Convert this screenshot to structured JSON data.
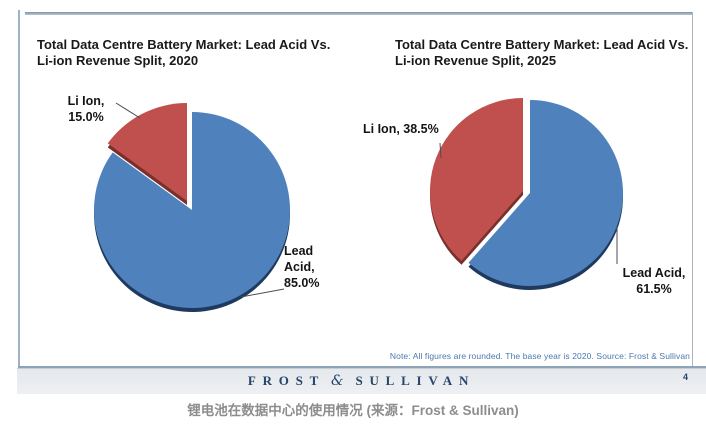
{
  "chart_data": [
    {
      "type": "pie",
      "title": "Total Data Centre Battery Market: Lead Acid Vs.\nLi-ion Revenue Split, 2020",
      "labels": [
        "Lead Acid",
        "Li Ion"
      ],
      "values": [
        85.0,
        15.0
      ],
      "unit": "%",
      "colors": [
        "#4f81bd",
        "#c0504d"
      ],
      "shadow_colors": [
        "#1f3a5f",
        "#7b2f2d"
      ],
      "callouts": [
        "Lead\nAcid,\n85.0%",
        "Li Ion,\n15.0%"
      ],
      "legend": "none",
      "start_angle_deg": 0,
      "direction": "clockwise",
      "exploded_slice": "Li Ion"
    },
    {
      "type": "pie",
      "title": "Total Data Centre Battery Market: Lead Acid Vs.\nLi-ion Revenue Split, 2025",
      "labels": [
        "Lead Acid",
        "Li Ion"
      ],
      "values": [
        61.5,
        38.5
      ],
      "unit": "%",
      "colors": [
        "#4f81bd",
        "#c0504d"
      ],
      "shadow_colors": [
        "#1f3a5f",
        "#7b2f2d"
      ],
      "callouts": [
        "Lead Acid,\n61.5%",
        "Li Ion, 38.5%"
      ],
      "legend": "none",
      "start_angle_deg": 0,
      "direction": "clockwise",
      "exploded_slice": "Li Ion"
    }
  ],
  "note": "Note: All figures are rounded. The base year is 2020. Source: Frost & Sullivan",
  "footer": {
    "brand_left": "FROST",
    "ampersand": "&",
    "brand_right": "SULLIVAN",
    "page_number": "4"
  },
  "caption": "锂电池在数据中心的使用情况 (来源：Frost & Sullivan)"
}
